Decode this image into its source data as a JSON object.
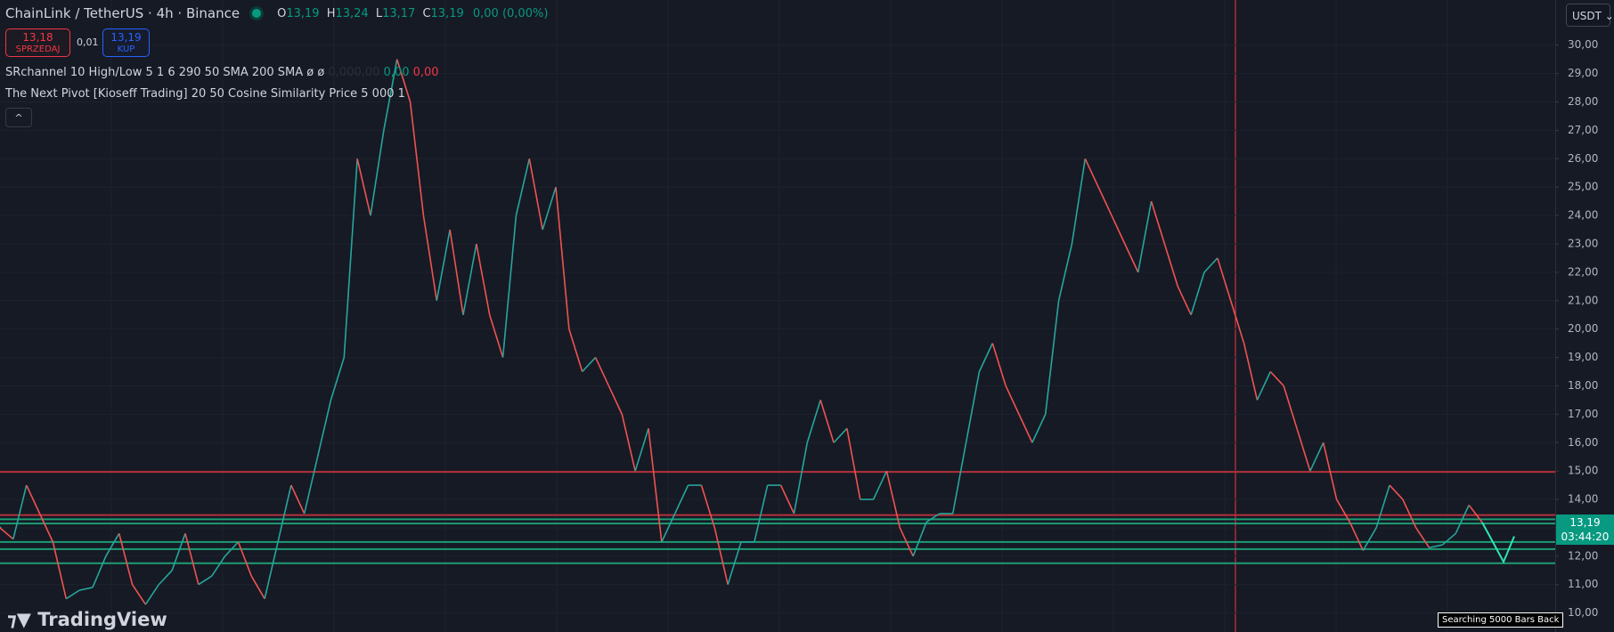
{
  "header": {
    "symbol": "ChainLink / TetherUS · 4h · Binance",
    "ohlc": [
      {
        "key": "O",
        "value": "13,19"
      },
      {
        "key": "H",
        "value": "13,24"
      },
      {
        "key": "L",
        "value": "13,17"
      },
      {
        "key": "C",
        "value": "13,19"
      }
    ],
    "change": "0,00 (0,00%)"
  },
  "trade": {
    "sell_price": "13,18",
    "sell_label": "SPRZEDAJ",
    "spread": "0,01",
    "buy_price": "13,19",
    "buy_label": "KUP"
  },
  "indicators": {
    "srchannel": {
      "name": "SRchannel 10 High/Low 5 1 6 290 50 SMA 200 SMA",
      "symbols": "ø ø",
      "values": [
        "0,00",
        "0,00",
        "0,00",
        "0,00"
      ]
    },
    "pivot": {
      "name": "The Next Pivot [Kioseff Trading] 20 50 Cosine Similarity Price 5 000 1"
    },
    "collapse": "^"
  },
  "currency": "USDT",
  "chart_data": {
    "type": "line",
    "values": [
      13,
      12.6,
      14.5,
      13.5,
      12.5,
      10.5,
      10.8,
      10.9,
      12,
      12.8,
      11,
      10.3,
      11,
      11.5,
      12.8,
      11,
      11.3,
      12,
      12.5,
      11.3,
      10.5,
      12.5,
      14.5,
      13.5,
      15.5,
      17.5,
      19,
      26,
      24,
      27,
      29.5,
      28,
      24,
      21,
      23.5,
      20.5,
      23,
      20.5,
      19,
      24,
      26,
      23.5,
      25,
      20,
      18.5,
      19,
      18,
      17,
      15,
      16.5,
      12.5,
      13.5,
      14.5,
      14.5,
      13,
      11,
      12.5,
      12.5,
      14.5,
      14.5,
      13.5,
      16,
      17.5,
      16,
      16.5,
      14,
      14,
      15,
      13,
      12,
      13.2,
      13.5,
      13.5,
      16,
      18.5,
      19.5,
      18,
      17,
      16,
      17,
      21,
      23,
      26,
      25,
      24,
      23,
      22,
      24.5,
      23,
      21.5,
      20.5,
      22,
      22.5,
      21,
      19.5,
      17.5,
      18.5,
      18,
      16.5,
      15,
      16,
      14,
      13.2,
      12.2,
      13,
      14.5,
      14,
      13,
      12.3,
      12.4,
      12.8,
      13.8,
      13.19
    ],
    "projection": [
      13.19,
      12.5,
      11.8,
      12.7
    ],
    "levels": [
      {
        "value": 14.97,
        "color": "#b2313a"
      },
      {
        "value": 13.45,
        "color": "#b2313a"
      },
      {
        "value": 13.3,
        "color": "#1e9c73"
      },
      {
        "value": 13.15,
        "color": "#1e9c73"
      },
      {
        "value": 12.5,
        "color": "#1e9c73"
      },
      {
        "value": 12.25,
        "color": "#1e9c73"
      },
      {
        "value": 11.75,
        "color": "#1e9c73"
      }
    ],
    "ylim": [
      9.33,
      31.59
    ],
    "yticks": [
      {
        "value": 10,
        "label": "10,00"
      },
      {
        "value": 11,
        "label": "11,00"
      },
      {
        "value": 12,
        "label": "12,00"
      },
      {
        "value": 13,
        "label": "13,00"
      },
      {
        "value": 14,
        "label": "14,00"
      },
      {
        "value": 15,
        "label": "15,00"
      },
      {
        "value": 16,
        "label": "16,00"
      },
      {
        "value": 17,
        "label": "17,00"
      },
      {
        "value": 18,
        "label": "18,00"
      },
      {
        "value": 19,
        "label": "19,00"
      },
      {
        "value": 20,
        "label": "20,00"
      },
      {
        "value": 21,
        "label": "21,00"
      },
      {
        "value": 22,
        "label": "22,00"
      },
      {
        "value": 23,
        "label": "23,00"
      },
      {
        "value": 24,
        "label": "24,00"
      },
      {
        "value": 25,
        "label": "25,00"
      },
      {
        "value": 26,
        "label": "26,00"
      },
      {
        "value": 27,
        "label": "27,00"
      },
      {
        "value": 28,
        "label": "28,00"
      },
      {
        "value": 29,
        "label": "29,00"
      },
      {
        "value": 30,
        "label": "30,00"
      }
    ],
    "last_price": {
      "value": 13.19,
      "label": "13,19",
      "countdown": "03:44:20"
    }
  },
  "footer": {
    "logo": "TradingView",
    "status": "Searching 5000 Bars Back"
  }
}
